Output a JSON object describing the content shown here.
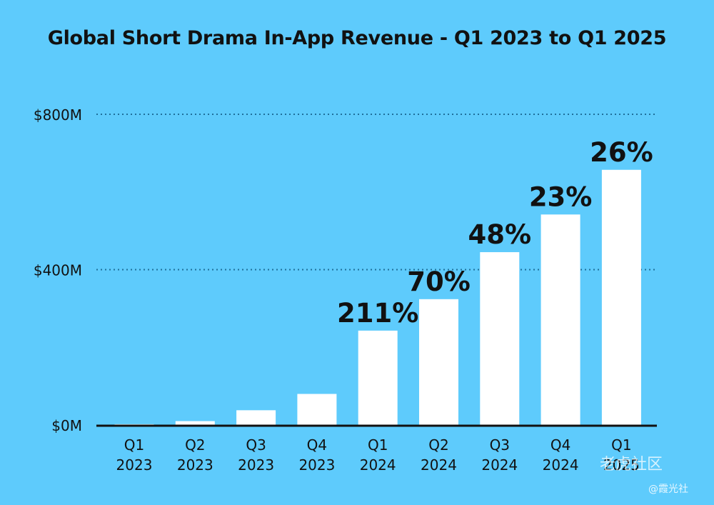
{
  "chart_data": {
    "type": "bar",
    "title": "Global Short Drama In-App Revenue - Q1 2023 to Q1 2025",
    "categories": [
      [
        "Q1",
        "2023"
      ],
      [
        "Q2",
        "2023"
      ],
      [
        "Q3",
        "2023"
      ],
      [
        "Q4",
        "2023"
      ],
      [
        "Q1",
        "2024"
      ],
      [
        "Q2",
        "2024"
      ],
      [
        "Q3",
        "2024"
      ],
      [
        "Q4",
        "2024"
      ],
      [
        "Q1",
        "2025"
      ]
    ],
    "values": [
      2,
      10,
      38,
      80,
      243,
      324,
      445,
      542,
      657
    ],
    "data_labels": [
      "",
      "",
      "",
      "",
      "211%",
      "70%",
      "48%",
      "23%",
      "26%"
    ],
    "yticks": [
      {
        "value": 0,
        "label": "$0M"
      },
      {
        "value": 400,
        "label": "$400M"
      },
      {
        "value": 800,
        "label": "$800M"
      }
    ],
    "ylim": [
      0,
      800
    ],
    "grid": true,
    "legend": "none",
    "colors": {
      "background": "#5ecbfc",
      "bar": "#ffffff",
      "text": "#111111",
      "grid": "#1f6f9a"
    }
  },
  "watermark": {
    "line1": "老虎社区",
    "line2": "@霞光社"
  }
}
